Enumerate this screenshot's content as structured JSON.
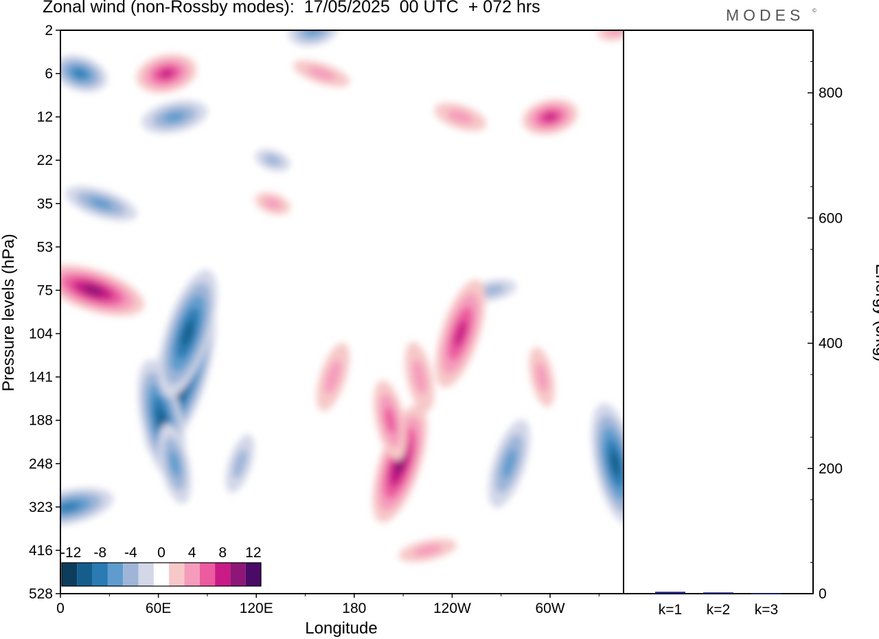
{
  "header": {
    "title": "Zonal wind (non-Rossby modes):  17/05/2025  00 UTC  + 072 hrs",
    "brand": "MODES",
    "brand_mark": "©"
  },
  "colors": {
    "neg": [
      "#0d3d5c",
      "#155e8c",
      "#2a7bb4",
      "#5f9ccd",
      "#9eb5d8",
      "#d3d7e8"
    ],
    "zero": "#ffffff",
    "pos": [
      "#f7c8c8",
      "#f59cbc",
      "#ec5b9f",
      "#c91b86",
      "#8e1677",
      "#4a0a68"
    ]
  },
  "chart_data": [
    {
      "type": "heatmap",
      "title": "Zonal wind (non-Rossby modes):  17/05/2025  00 UTC  + 072 hrs",
      "xlabel": "Longitude",
      "ylabel": "Pressure levels (hPa)",
      "x_ticks": [
        "0",
        "60E",
        "120E",
        "180",
        "120W",
        "60W"
      ],
      "y_ticks": [
        "2",
        "6",
        "12",
        "22",
        "35",
        "53",
        "75",
        "104",
        "141",
        "188",
        "248",
        "323",
        "416",
        "528"
      ],
      "xlim": [
        0,
        345
      ],
      "colorbar": {
        "labels": [
          "-12",
          "-8",
          "-4",
          "0",
          "4",
          "8",
          "12"
        ],
        "bins": 13
      },
      "features": [
        {
          "lon": 73,
          "level": 141,
          "value": -13
        },
        {
          "lon": 62,
          "level": 188,
          "value": -9
        },
        {
          "lon": 78,
          "level": 104,
          "value": -10
        },
        {
          "lon": 70,
          "level": 248,
          "value": -5
        },
        {
          "lon": 110,
          "level": 248,
          "value": -3
        },
        {
          "lon": 5,
          "level": 323,
          "value": -7
        },
        {
          "lon": 12,
          "level": 6,
          "value": -7
        },
        {
          "lon": 70,
          "level": 12,
          "value": -6
        },
        {
          "lon": 25,
          "level": 35,
          "value": -5
        },
        {
          "lon": 155,
          "level": 2,
          "value": -6
        },
        {
          "lon": 275,
          "level": 248,
          "value": -6
        },
        {
          "lon": 340,
          "level": 248,
          "value": -9
        },
        {
          "lon": 130,
          "level": 22,
          "value": -3
        },
        {
          "lon": 265,
          "level": 75,
          "value": -3
        },
        {
          "lon": 20,
          "level": 75,
          "value": 9
        },
        {
          "lon": 65,
          "level": 6,
          "value": 8
        },
        {
          "lon": 208,
          "level": 248,
          "value": 9
        },
        {
          "lon": 202,
          "level": 188,
          "value": 5
        },
        {
          "lon": 167,
          "level": 141,
          "value": 4
        },
        {
          "lon": 220,
          "level": 141,
          "value": 4
        },
        {
          "lon": 245,
          "level": 104,
          "value": 8
        },
        {
          "lon": 300,
          "level": 12,
          "value": 7
        },
        {
          "lon": 245,
          "level": 12,
          "value": 4
        },
        {
          "lon": 225,
          "level": 416,
          "value": 3
        },
        {
          "lon": 130,
          "level": 35,
          "value": 3
        },
        {
          "lon": 295,
          "level": 141,
          "value": 3
        },
        {
          "lon": 160,
          "level": 6,
          "value": 3
        },
        {
          "lon": 340,
          "level": 2,
          "value": 3
        }
      ]
    },
    {
      "type": "bar",
      "ylabel": "Energy (J/kg)",
      "categories": [
        "k=1",
        "k=2",
        "k=3"
      ],
      "values": [
        3,
        2,
        1
      ],
      "y_ticks": [
        "0",
        "200",
        "400",
        "600",
        "800"
      ],
      "ylim": [
        0,
        900
      ]
    }
  ]
}
